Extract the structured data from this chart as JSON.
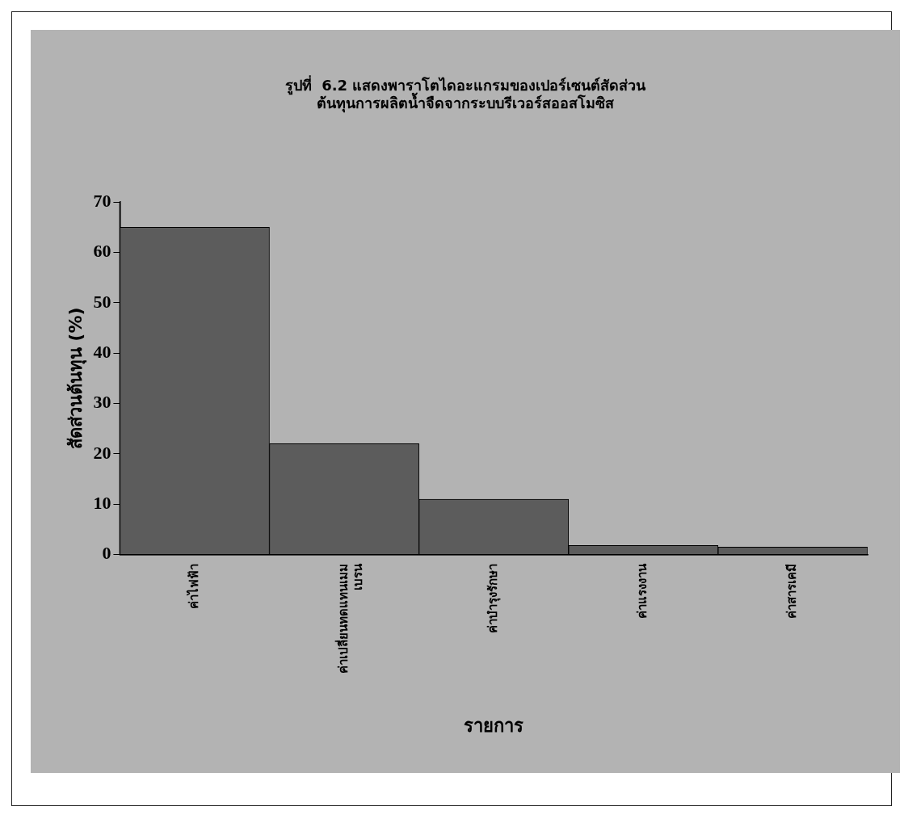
{
  "chart_data": {
    "type": "bar",
    "title": [
      "รูปที่  6.2 แสดงพาราโตไดอะแกรมของเปอร์เซนต์สัดส่วน",
      "ต้นทุนการผลิตน้ำจืดจากระบบรีเวอร์สออสโมซิส"
    ],
    "xlabel": "รายการ",
    "ylabel": "สัดส่วนต้นทุน (%)",
    "categories": [
      "ค่าไฟฟ้า",
      "ค่าเปลี่ยนทดแทนเมมเบรน",
      "ค่าบำรุงรักษา",
      "ค่าแรงงาน",
      "ค่าสารเคมี"
    ],
    "values": [
      65,
      22,
      11,
      1.8,
      1.5
    ],
    "color": "#5c5c5c",
    "ylim": [
      0,
      70
    ],
    "yticks": [
      0,
      10,
      20,
      30,
      40,
      50,
      60,
      70
    ],
    "grid": false,
    "legend": false
  }
}
